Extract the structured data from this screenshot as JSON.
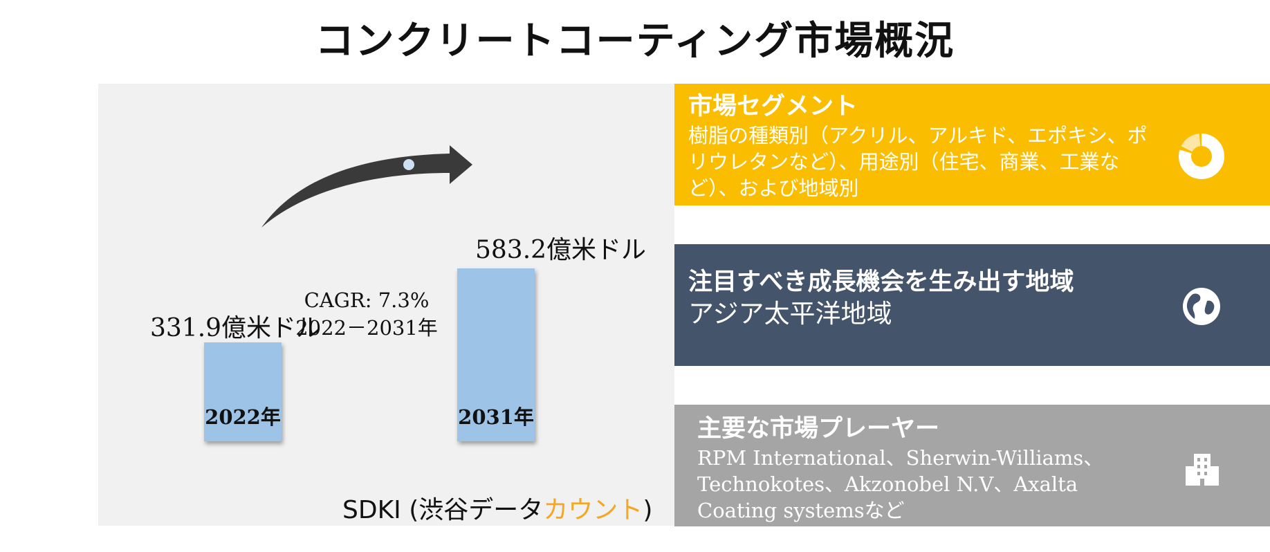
{
  "title": "コンクリートコーティング市場概況",
  "chart_data": {
    "type": "bar",
    "categories": [
      "2022年",
      "2031年"
    ],
    "values": [
      331.9,
      583.2
    ],
    "value_labels": [
      "331.9億米ドル",
      "583.2億米ドル"
    ],
    "annotation": {
      "cagr": "CAGR: 7.3%",
      "period": "2022－2031年"
    },
    "colors": {
      "bar": "#9dc3e6",
      "arrow": "#3a3a3a"
    }
  },
  "source": {
    "prefix": "SDKI (渋谷データ",
    "accent": "カウント",
    "suffix": ")"
  },
  "panels": [
    {
      "title": "市場セグメント",
      "body": "樹脂の種類別（アクリル、アルキド、エポキシ、ポリウレタンなど）、用途別（住宅、商業、工業など）、および地域別",
      "icon": "donut-chart-icon",
      "color": "#fbbd00"
    },
    {
      "title": "注目すべき成長機会を生み出す地域",
      "body": "アジア太平洋地域",
      "icon": "globe-icon",
      "color": "#44546a"
    },
    {
      "title": "主要な市場プレーヤー",
      "body": "RPM International、Sherwin-Williams、Technokotes、Akzonobel N.V、Axalta Coating systemsなど",
      "icon": "building-icon",
      "color": "#a5a5a5"
    }
  ]
}
